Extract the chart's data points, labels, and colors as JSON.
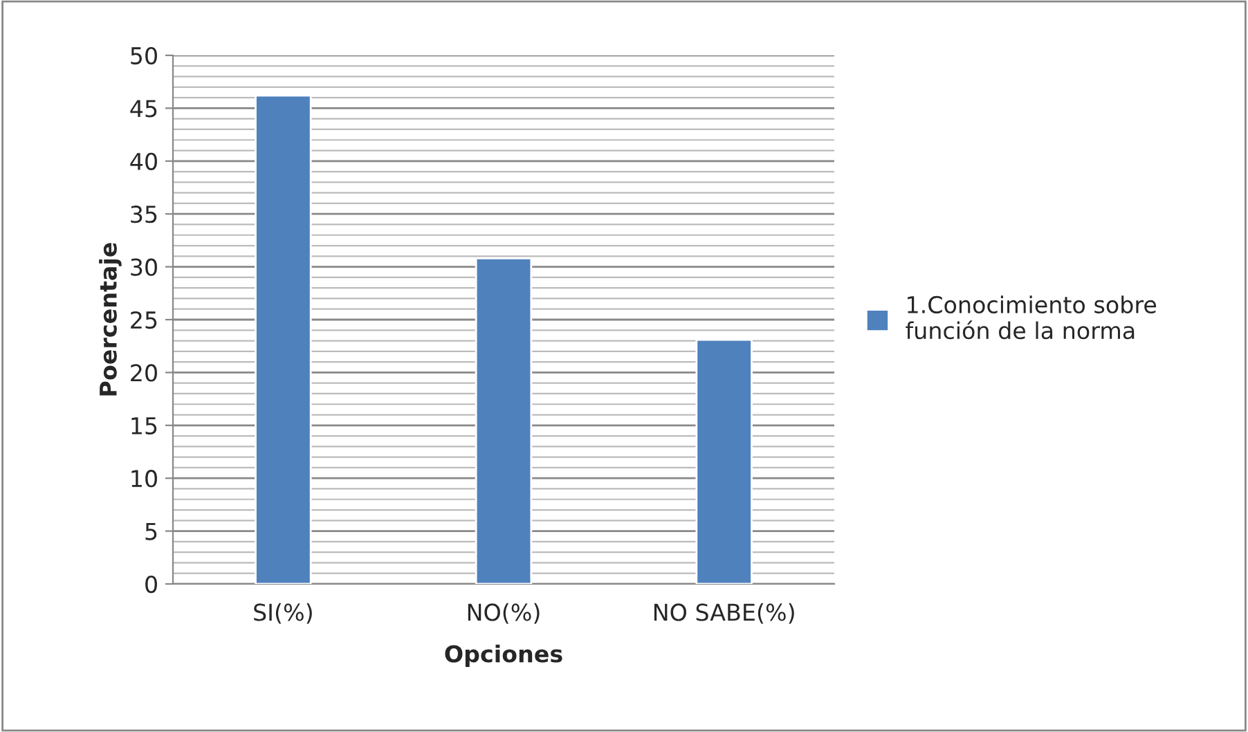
{
  "chart_data": {
    "type": "bar",
    "xlabel": "Opciones",
    "ylabel": "Poercentaje",
    "categories": [
      "SI(%)",
      "NO(%)",
      "NO SABE(%)"
    ],
    "series": [
      {
        "name": "1.Conocimiento sobre función de la norma",
        "color": "#4f81bd",
        "values": [
          46.2,
          30.8,
          23.1
        ]
      }
    ],
    "ylim": [
      0,
      50
    ],
    "yticks": [
      0,
      5,
      10,
      15,
      20,
      25,
      30,
      35,
      40,
      45,
      50
    ],
    "grid": "y",
    "legend": "right"
  }
}
